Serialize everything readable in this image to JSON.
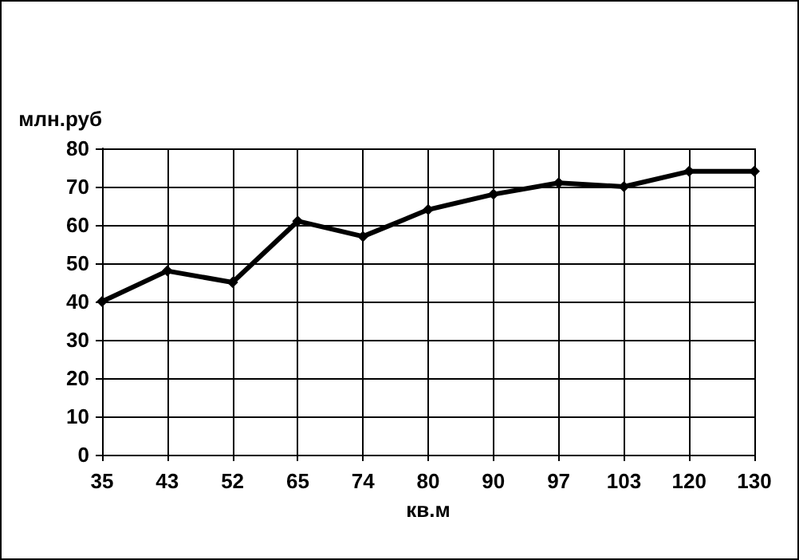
{
  "chart_data": {
    "type": "line",
    "xlabel": "кв.м",
    "ylabel": "млн.руб",
    "categories": [
      "35",
      "43",
      "52",
      "65",
      "74",
      "80",
      "90",
      "97",
      "103",
      "120",
      "130"
    ],
    "series": [
      {
        "color": "#000000",
        "values": [
          40,
          48,
          45,
          61,
          57,
          64,
          68,
          71,
          70,
          74,
          74
        ]
      }
    ],
    "ylim": [
      0,
      80
    ],
    "yticks": [
      0,
      10,
      20,
      30,
      40,
      50,
      60,
      70,
      80
    ],
    "grid": true,
    "marker": "diamond",
    "line_style": "solid"
  }
}
